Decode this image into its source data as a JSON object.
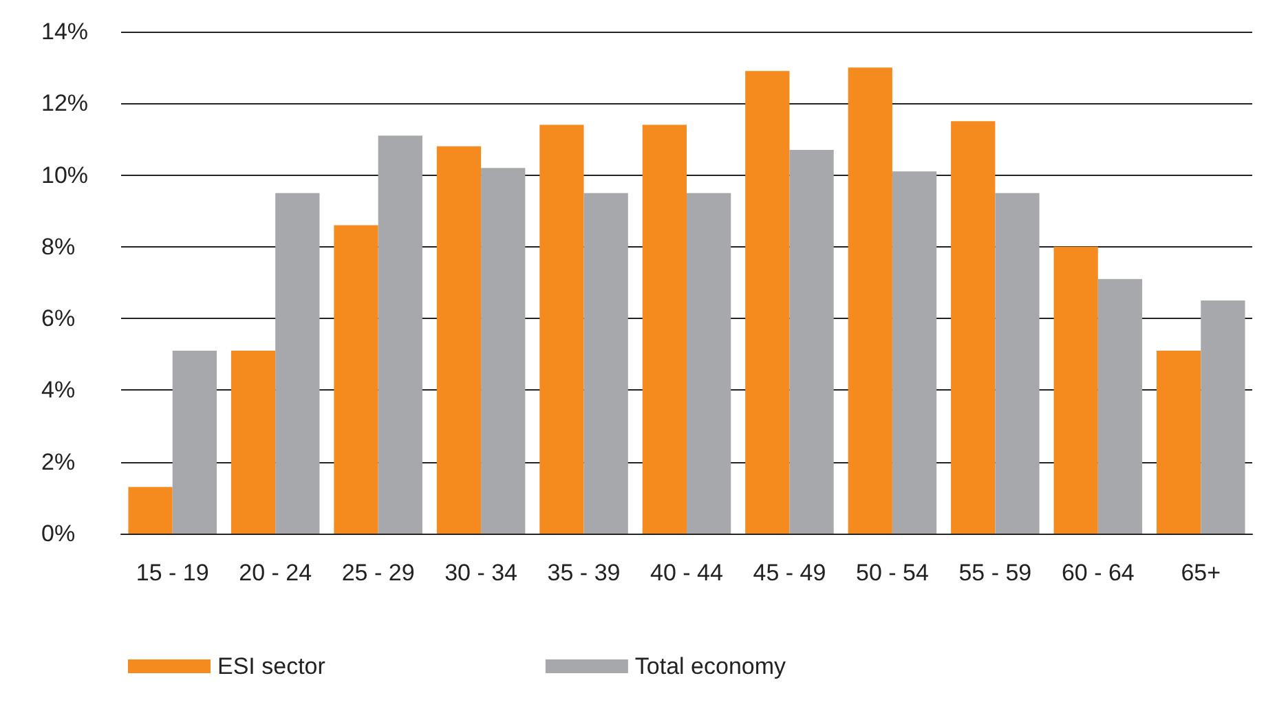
{
  "chart_data": {
    "type": "bar",
    "categories": [
      "15 - 19",
      "20 - 24",
      "25 - 29",
      "30 - 34",
      "35 - 39",
      "40 - 44",
      "45 - 49",
      "50 - 54",
      "55 - 59",
      "60 - 64",
      "65+"
    ],
    "series": [
      {
        "name": "ESI sector",
        "color": "#f58a1f",
        "values": [
          1.3,
          5.1,
          8.6,
          10.8,
          11.4,
          11.4,
          12.9,
          13.0,
          11.5,
          8.0,
          5.1
        ]
      },
      {
        "name": "Total economy",
        "color": "#a7a8ab",
        "values": [
          5.1,
          9.5,
          11.1,
          10.2,
          9.5,
          9.5,
          10.7,
          10.1,
          9.5,
          7.1,
          6.5
        ]
      }
    ],
    "ylim": [
      0,
      14
    ],
    "yticks": [
      {
        "value": 0,
        "label": "0%"
      },
      {
        "value": 2,
        "label": "2%"
      },
      {
        "value": 4,
        "label": "4%"
      },
      {
        "value": 6,
        "label": "6%"
      },
      {
        "value": 8,
        "label": "8%"
      },
      {
        "value": 10,
        "label": "10%"
      },
      {
        "value": 12,
        "label": "12%"
      },
      {
        "value": 14,
        "label": "14%"
      }
    ],
    "grid": "y",
    "legend": "bottom left"
  }
}
